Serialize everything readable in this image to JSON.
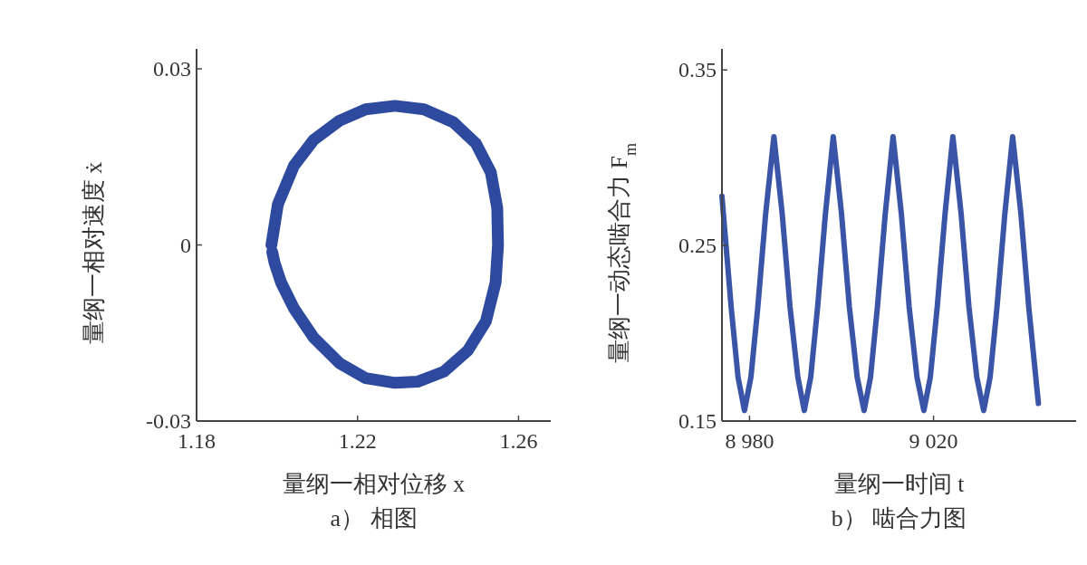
{
  "chart_data": [
    {
      "type": "line",
      "xlabel": "量纲一相对位移 x",
      "ylabel": "量纲一相对速度 ẋ",
      "annotations": [
        "a） 相图"
      ],
      "xlim": [
        1.18,
        1.268
      ],
      "ylim": [
        -0.03,
        0.0334
      ],
      "xticks": [
        1.18,
        1.22,
        1.26
      ],
      "yticks": [
        -0.03,
        0,
        0.03
      ],
      "color": "#2e4a9e",
      "x": [
        1.1986,
        1.2002,
        1.2042,
        1.2091,
        1.2156,
        1.222,
        1.2293,
        1.2365,
        1.2438,
        1.2494,
        1.2531,
        1.2547,
        1.2549,
        1.2543,
        1.2519,
        1.2474,
        1.2414,
        1.2349,
        1.2293,
        1.222,
        1.2156,
        1.2091,
        1.2042,
        1.201,
        1.1994,
        1.1988
      ],
      "values": [
        0,
        0.0069,
        0.0135,
        0.0179,
        0.0212,
        0.0231,
        0.0237,
        0.0231,
        0.0209,
        0.0173,
        0.0124,
        0.0063,
        0,
        -0.0064,
        -0.013,
        -0.018,
        -0.0216,
        -0.0233,
        -0.0235,
        -0.0227,
        -0.0202,
        -0.0158,
        -0.0108,
        -0.0064,
        -0.0031,
        -0.0012
      ]
    },
    {
      "type": "line",
      "xlabel": "量纲一时间 t",
      "ylabel": "量纲一动态啮合力 F$_{m}$",
      "annotations": [
        "b） 啮合力图"
      ],
      "color": "#3a55a8",
      "xlim": [
        8974,
        9051
      ],
      "ylim": [
        0.15,
        0.362
      ],
      "xticks": [
        {
          "value": 8980,
          "label": "8 980"
        },
        {
          "value": 9020,
          "label": "9 020"
        }
      ],
      "yticks": [
        0.15,
        0.25,
        0.35
      ],
      "x": [
        8974,
        8976,
        8977.5,
        8978.9,
        8980.3,
        8981.8,
        8983.5,
        8985.3,
        8987.1,
        8988.8,
        8990.5,
        8991.9,
        8993.3,
        8994.8,
        8996.5,
        8998.2,
        9000,
        9001.7,
        9003.4,
        9004.9,
        9006.3,
        9007.8,
        9009.5,
        9011.2,
        9013,
        9014.7,
        9016.4,
        9017.9,
        9019.3,
        9020.8,
        9022.5,
        9024.2,
        9026,
        9027.7,
        9029.4,
        9030.9,
        9032.3,
        9033.8,
        9035.5,
        9037.2,
        9039,
        9040.7,
        9042.8
      ],
      "values": [
        0.278,
        0.215,
        0.175,
        0.156,
        0.175,
        0.215,
        0.268,
        0.312,
        0.268,
        0.215,
        0.175,
        0.156,
        0.175,
        0.215,
        0.268,
        0.312,
        0.268,
        0.215,
        0.175,
        0.156,
        0.175,
        0.215,
        0.268,
        0.312,
        0.268,
        0.215,
        0.175,
        0.156,
        0.175,
        0.215,
        0.268,
        0.312,
        0.268,
        0.215,
        0.175,
        0.156,
        0.175,
        0.215,
        0.268,
        0.312,
        0.268,
        0.215,
        0.16
      ]
    }
  ]
}
